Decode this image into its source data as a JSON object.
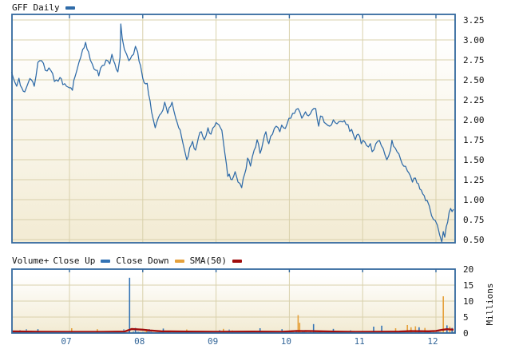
{
  "header": {
    "symbol_label": "GFF Daily"
  },
  "volume_legend": {
    "volume_plus": "Volume+",
    "close_up": "Close Up",
    "close_down": "Close Down",
    "sma": "SMA(50)"
  },
  "colors": {
    "frame": "#34699E",
    "price_line": "#2F6BA8",
    "grid": "#D9D1AC",
    "close_up": "#3373B5",
    "close_down": "#E5A13C",
    "sma": "#A00D0D",
    "year_label": "#336699",
    "text": "#111111",
    "pane_top": "#FFFFFF",
    "pane_bottom": "#F3ECD5"
  },
  "chart_data": [
    {
      "type": "line",
      "name": "price",
      "title": "GFF Daily",
      "x_unit": "decimal_year",
      "x_range": [
        2006.21,
        2012.26
      ],
      "ylim": [
        0.38,
        3.32
      ],
      "grid": true,
      "legend_position": "top-left-outside",
      "y_ticks": [
        "3.25",
        "3.00",
        "2.75",
        "2.50",
        "2.25",
        "2.00",
        "1.75",
        "1.50",
        "1.25",
        "1.00",
        "0.75",
        "0.50"
      ],
      "y_tick_values": [
        3.25,
        3.0,
        2.75,
        2.5,
        2.25,
        2.0,
        1.75,
        1.5,
        1.25,
        1.0,
        0.75,
        0.5
      ],
      "x_ticks": [
        {
          "t": 2007,
          "label": "07"
        },
        {
          "t": 2008,
          "label": "08"
        },
        {
          "t": 2009,
          "label": "09"
        },
        {
          "t": 2010,
          "label": "10"
        },
        {
          "t": 2011,
          "label": "11"
        },
        {
          "t": 2012,
          "label": "12"
        }
      ],
      "series": [
        {
          "name": "GFF Daily Close",
          "color_key": "price_line",
          "points": [
            [
              2006.21,
              2.6
            ],
            [
              2006.25,
              2.48
            ],
            [
              2006.28,
              2.42
            ],
            [
              2006.31,
              2.52
            ],
            [
              2006.35,
              2.4
            ],
            [
              2006.39,
              2.35
            ],
            [
              2006.44,
              2.47
            ],
            [
              2006.48,
              2.5
            ],
            [
              2006.52,
              2.42
            ],
            [
              2006.57,
              2.72
            ],
            [
              2006.62,
              2.74
            ],
            [
              2006.67,
              2.62
            ],
            [
              2006.72,
              2.65
            ],
            [
              2006.77,
              2.58
            ],
            [
              2006.82,
              2.5
            ],
            [
              2006.87,
              2.53
            ],
            [
              2006.91,
              2.44
            ],
            [
              2006.96,
              2.42
            ],
            [
              2007.0,
              2.4
            ],
            [
              2007.04,
              2.37
            ],
            [
              2007.08,
              2.55
            ],
            [
              2007.13,
              2.72
            ],
            [
              2007.18,
              2.88
            ],
            [
              2007.22,
              2.97
            ],
            [
              2007.26,
              2.85
            ],
            [
              2007.31,
              2.7
            ],
            [
              2007.36,
              2.62
            ],
            [
              2007.4,
              2.55
            ],
            [
              2007.45,
              2.68
            ],
            [
              2007.5,
              2.75
            ],
            [
              2007.55,
              2.7
            ],
            [
              2007.58,
              2.82
            ],
            [
              2007.62,
              2.7
            ],
            [
              2007.66,
              2.6
            ],
            [
              2007.69,
              2.78
            ],
            [
              2007.7,
              3.2
            ],
            [
              2007.72,
              3.02
            ],
            [
              2007.75,
              2.88
            ],
            [
              2007.78,
              2.82
            ],
            [
              2007.81,
              2.74
            ],
            [
              2007.85,
              2.8
            ],
            [
              2007.9,
              2.92
            ],
            [
              2007.93,
              2.85
            ],
            [
              2007.97,
              2.68
            ],
            [
              2008.0,
              2.52
            ],
            [
              2008.04,
              2.45
            ],
            [
              2008.08,
              2.32
            ],
            [
              2008.12,
              2.1
            ],
            [
              2008.17,
              1.9
            ],
            [
              2008.21,
              2.02
            ],
            [
              2008.25,
              2.08
            ],
            [
              2008.3,
              2.22
            ],
            [
              2008.34,
              2.08
            ],
            [
              2008.4,
              2.22
            ],
            [
              2008.45,
              2.02
            ],
            [
              2008.49,
              1.9
            ],
            [
              2008.53,
              1.78
            ],
            [
              2008.57,
              1.62
            ],
            [
              2008.6,
              1.5
            ],
            [
              2008.64,
              1.65
            ],
            [
              2008.68,
              1.73
            ],
            [
              2008.72,
              1.62
            ],
            [
              2008.76,
              1.78
            ],
            [
              2008.8,
              1.85
            ],
            [
              2008.84,
              1.75
            ],
            [
              2008.89,
              1.9
            ],
            [
              2008.93,
              1.82
            ],
            [
              2008.98,
              1.92
            ],
            [
              2009.02,
              1.95
            ],
            [
              2009.06,
              1.9
            ],
            [
              2009.1,
              1.72
            ],
            [
              2009.14,
              1.45
            ],
            [
              2009.18,
              1.32
            ],
            [
              2009.22,
              1.25
            ],
            [
              2009.26,
              1.35
            ],
            [
              2009.3,
              1.22
            ],
            [
              2009.35,
              1.15
            ],
            [
              2009.39,
              1.32
            ],
            [
              2009.43,
              1.52
            ],
            [
              2009.47,
              1.42
            ],
            [
              2009.52,
              1.62
            ],
            [
              2009.56,
              1.75
            ],
            [
              2009.6,
              1.58
            ],
            [
              2009.64,
              1.72
            ],
            [
              2009.68,
              1.85
            ],
            [
              2009.72,
              1.7
            ],
            [
              2009.77,
              1.82
            ],
            [
              2009.82,
              1.92
            ],
            [
              2009.87,
              1.85
            ],
            [
              2009.92,
              1.9
            ],
            [
              2009.97,
              1.95
            ],
            [
              2010.02,
              2.02
            ],
            [
              2010.07,
              2.08
            ],
            [
              2010.12,
              2.14
            ],
            [
              2010.17,
              2.02
            ],
            [
              2010.22,
              2.1
            ],
            [
              2010.26,
              2.05
            ],
            [
              2010.31,
              2.12
            ],
            [
              2010.36,
              2.14
            ],
            [
              2010.4,
              1.92
            ],
            [
              2010.45,
              2.04
            ],
            [
              2010.5,
              1.95
            ],
            [
              2010.55,
              1.92
            ],
            [
              2010.6,
              2.0
            ],
            [
              2010.65,
              1.95
            ],
            [
              2010.7,
              1.98
            ],
            [
              2010.75,
              1.99
            ],
            [
              2010.8,
              1.94
            ],
            [
              2010.85,
              1.88
            ],
            [
              2010.9,
              1.75
            ],
            [
              2010.94,
              1.82
            ],
            [
              2010.98,
              1.7
            ],
            [
              2011.03,
              1.72
            ],
            [
              2011.08,
              1.66
            ],
            [
              2011.13,
              1.6
            ],
            [
              2011.18,
              1.7
            ],
            [
              2011.23,
              1.74
            ],
            [
              2011.28,
              1.64
            ],
            [
              2011.33,
              1.5
            ],
            [
              2011.38,
              1.62
            ],
            [
              2011.42,
              1.67
            ],
            [
              2011.47,
              1.6
            ],
            [
              2011.52,
              1.5
            ],
            [
              2011.56,
              1.42
            ],
            [
              2011.61,
              1.36
            ],
            [
              2011.65,
              1.3
            ],
            [
              2011.68,
              1.22
            ],
            [
              2011.72,
              1.27
            ],
            [
              2011.76,
              1.2
            ],
            [
              2011.8,
              1.12
            ],
            [
              2011.84,
              1.05
            ],
            [
              2011.88,
              0.99
            ],
            [
              2011.91,
              0.92
            ],
            [
              2011.94,
              0.8
            ],
            [
              2011.99,
              0.74
            ],
            [
              2012.02,
              0.68
            ],
            [
              2012.05,
              0.56
            ],
            [
              2012.08,
              0.46
            ],
            [
              2012.1,
              0.6
            ],
            [
              2012.12,
              0.53
            ],
            [
              2012.14,
              0.66
            ],
            [
              2012.16,
              0.72
            ],
            [
              2012.18,
              0.84
            ],
            [
              2012.2,
              0.89
            ],
            [
              2012.22,
              0.85
            ],
            [
              2012.24,
              0.88
            ]
          ]
        }
      ]
    },
    {
      "type": "bar",
      "name": "volume",
      "ylabel": "Millions",
      "ylim": [
        0,
        20
      ],
      "grid": true,
      "y_ticks": [
        "20",
        "15",
        "10",
        "5",
        "0"
      ],
      "y_tick_values": [
        20,
        15,
        10,
        5,
        0
      ],
      "typical_daily_volume_millions": [
        0.05,
        0.9
      ],
      "notable_bars": [
        {
          "t": 2006.57,
          "millions": 1.2,
          "dir": "up"
        },
        {
          "t": 2007.03,
          "millions": 1.5,
          "dir": "down"
        },
        {
          "t": 2007.38,
          "millions": 1.2,
          "dir": "down"
        },
        {
          "t": 2007.82,
          "millions": 17.3,
          "dir": "up"
        },
        {
          "t": 2007.9,
          "millions": 1.6,
          "dir": "up"
        },
        {
          "t": 2008.05,
          "millions": 1.2,
          "dir": "down"
        },
        {
          "t": 2008.28,
          "millions": 1.4,
          "dir": "up"
        },
        {
          "t": 2008.6,
          "millions": 1.1,
          "dir": "down"
        },
        {
          "t": 2009.1,
          "millions": 1.3,
          "dir": "down"
        },
        {
          "t": 2009.6,
          "millions": 1.5,
          "dir": "up"
        },
        {
          "t": 2009.9,
          "millions": 1.2,
          "dir": "up"
        },
        {
          "t": 2010.12,
          "millions": 5.6,
          "dir": "down"
        },
        {
          "t": 2010.14,
          "millions": 3.2,
          "dir": "down"
        },
        {
          "t": 2010.33,
          "millions": 2.8,
          "dir": "up"
        },
        {
          "t": 2010.6,
          "millions": 1.3,
          "dir": "up"
        },
        {
          "t": 2011.15,
          "millions": 2.0,
          "dir": "up"
        },
        {
          "t": 2011.26,
          "millions": 2.3,
          "dir": "up"
        },
        {
          "t": 2011.45,
          "millions": 1.5,
          "dir": "down"
        },
        {
          "t": 2011.61,
          "millions": 2.5,
          "dir": "down"
        },
        {
          "t": 2011.66,
          "millions": 1.8,
          "dir": "down"
        },
        {
          "t": 2011.72,
          "millions": 2.1,
          "dir": "down"
        },
        {
          "t": 2011.77,
          "millions": 1.8,
          "dir": "up"
        },
        {
          "t": 2011.85,
          "millions": 1.6,
          "dir": "down"
        },
        {
          "t": 2012.1,
          "millions": 11.5,
          "dir": "down"
        },
        {
          "t": 2012.15,
          "millions": 2.4,
          "dir": "up"
        },
        {
          "t": 2012.19,
          "millions": 2.0,
          "dir": "down"
        },
        {
          "t": 2012.22,
          "millions": 1.6,
          "dir": "up"
        }
      ],
      "sma50_millions": [
        [
          2006.21,
          0.5
        ],
        [
          2006.6,
          0.4
        ],
        [
          2007.0,
          0.35
        ],
        [
          2007.4,
          0.35
        ],
        [
          2007.75,
          0.45
        ],
        [
          2007.85,
          1.25
        ],
        [
          2008.0,
          1.05
        ],
        [
          2008.1,
          0.8
        ],
        [
          2008.25,
          0.55
        ],
        [
          2008.6,
          0.45
        ],
        [
          2009.0,
          0.4
        ],
        [
          2009.5,
          0.45
        ],
        [
          2009.9,
          0.4
        ],
        [
          2010.1,
          0.65
        ],
        [
          2010.3,
          0.6
        ],
        [
          2010.6,
          0.45
        ],
        [
          2010.9,
          0.35
        ],
        [
          2011.2,
          0.4
        ],
        [
          2011.5,
          0.45
        ],
        [
          2011.65,
          0.6
        ],
        [
          2011.9,
          0.55
        ],
        [
          2012.0,
          0.65
        ],
        [
          2012.08,
          1.0
        ],
        [
          2012.15,
          1.2
        ],
        [
          2012.24,
          1.05
        ]
      ]
    }
  ]
}
